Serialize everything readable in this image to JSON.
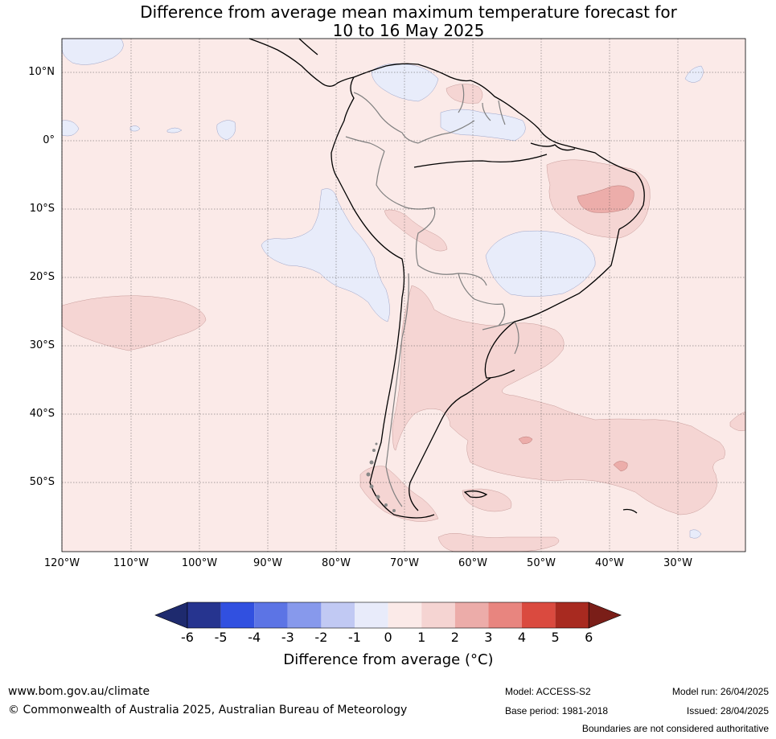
{
  "title": {
    "line1": "Difference from average mean maximum temperature forecast for",
    "line2": "10 to 16 May 2025"
  },
  "map": {
    "lat_labels": [
      "10°N",
      "0°",
      "10°S",
      "20°S",
      "30°S",
      "40°S",
      "50°S"
    ],
    "lon_labels": [
      "120°W",
      "110°W",
      "100°W",
      "90°W",
      "80°W",
      "70°W",
      "60°W",
      "50°W",
      "40°W",
      "30°W"
    ],
    "colors": {
      "background_0_to_1": "#fbeae8",
      "band_1_to_2": "#f5d5d3",
      "band_2_to_3": "#ecadaa",
      "band_minus1_to_0": "#e8ecfa",
      "coastline": "#000000",
      "borders": "#808080"
    }
  },
  "colorbar": {
    "ticks": [
      "-6",
      "-5",
      "-4",
      "-3",
      "-2",
      "-1",
      "0",
      "1",
      "2",
      "3",
      "4",
      "5",
      "6"
    ],
    "colors": [
      "#26348f",
      "#3150e0",
      "#5c74e5",
      "#8799ec",
      "#c1c9f3",
      "#e8ebfa",
      "#fbeae8",
      "#f5d4d2",
      "#ecaca9",
      "#e8857f",
      "#da4a3f",
      "#a82a20"
    ],
    "under_color": "#1e2a6e",
    "over_color": "#7a1e18",
    "label": "Difference from average (°C)"
  },
  "footer": {
    "website": "www.bom.gov.au/climate",
    "copyright": "© Commonwealth of Australia 2025, Australian Bureau of Meteorology",
    "model": "Model: ACCESS-S2",
    "base_period": "Base period: 1981-2018",
    "model_run": "Model run: 26/04/2025",
    "issued": "Issued: 28/04/2025",
    "disclaimer": "Boundaries are not considered authoritative"
  }
}
